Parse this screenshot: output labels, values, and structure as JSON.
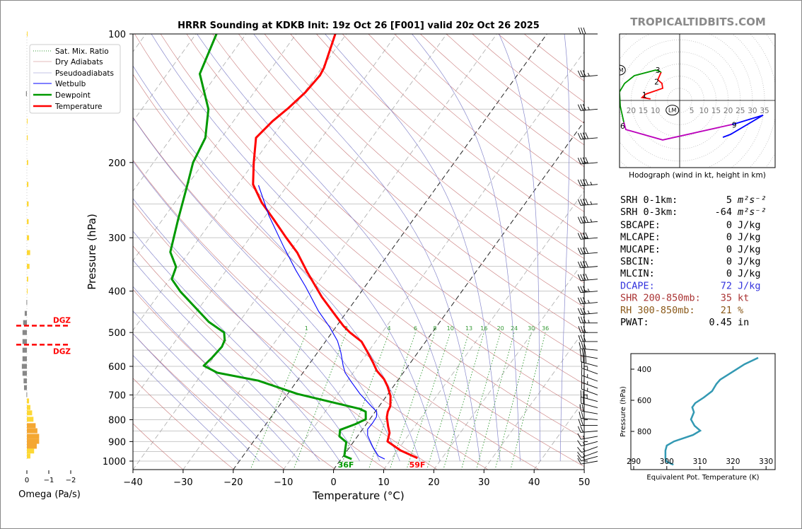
{
  "title": "HRRR Sounding at KDKB Init: 19z Oct 26 [F001] valid 20z Oct 26 2025",
  "watermark": "TROPICALTIDBITS.COM",
  "colors": {
    "temperature": "#ff0000",
    "dewpoint": "#009900",
    "wetbulb": "#0000ff",
    "dry": "#c87878",
    "moist": "#8888cc",
    "mix": "#339933",
    "thetae": "#3399b3",
    "dgz": "#ff0000",
    "omega_up": "#f4a732",
    "omega_weak": "#fdd835",
    "omega_down": "#888888"
  },
  "legend": [
    "Sat. Mix. Ratio",
    "Dry Adiabats",
    "Pseudoadiabats",
    "Wetbulb",
    "Dewpoint",
    "Temperature"
  ],
  "chart_data": {
    "type": "line",
    "title": "HRRR Sounding at KDKB Init: 19z Oct 26 [F001] valid 20z Oct 26 2025",
    "xlabel": "Temperature (°C)",
    "ylabel": "Pressure (hPa)",
    "xlim": [
      -40,
      50
    ],
    "ylim": [
      1050,
      100
    ],
    "xticks": [
      "−40",
      "−30",
      "−20",
      "−10",
      "0",
      "10",
      "20",
      "30",
      "40",
      "50"
    ],
    "yticks": [
      "100",
      "200",
      "300",
      "400",
      "500",
      "600",
      "700",
      "800",
      "900",
      "1000"
    ],
    "mixing_ratio_labels": [
      "1",
      "2",
      "4",
      "6",
      "8",
      "10",
      "13",
      "16",
      "20",
      "24",
      "30",
      "36"
    ],
    "surface_labels": {
      "dewpoint": "36F",
      "temperature": "59F"
    },
    "series": [
      {
        "name": "Temperature",
        "points": [
          [
            984,
            15.1
          ],
          [
            944,
            10.6
          ],
          [
            899,
            6.7
          ],
          [
            859,
            5.9
          ],
          [
            830,
            4.7
          ],
          [
            789,
            3.1
          ],
          [
            766,
            2.5
          ],
          [
            743,
            2.2
          ],
          [
            704,
            0.8
          ],
          [
            668,
            -1.2
          ],
          [
            643,
            -2.9
          ],
          [
            614,
            -5.6
          ],
          [
            589,
            -7.4
          ],
          [
            552,
            -10.4
          ],
          [
            525,
            -12.8
          ],
          [
            500,
            -16.4
          ],
          [
            483,
            -18.6
          ],
          [
            453,
            -22.1
          ],
          [
            413,
            -27.1
          ],
          [
            361,
            -33.6
          ],
          [
            325,
            -38.4
          ],
          [
            299,
            -42.9
          ],
          [
            272,
            -47.8
          ],
          [
            248,
            -52.7
          ],
          [
            225,
            -57
          ],
          [
            200,
            -60
          ],
          [
            175,
            -63.1
          ],
          [
            160,
            -62.2
          ],
          [
            149,
            -60.9
          ],
          [
            137,
            -59.8
          ],
          [
            125,
            -59.3
          ],
          [
            120,
            -59.6
          ],
          [
            100,
            -62.2
          ]
        ]
      },
      {
        "name": "Dewpoint",
        "points": [
          [
            989,
            2.1
          ],
          [
            973,
            0.2
          ],
          [
            903,
            -1.4
          ],
          [
            875,
            -3.6
          ],
          [
            845,
            -4.4
          ],
          [
            820,
            -2.2
          ],
          [
            798,
            -0.8
          ],
          [
            766,
            -1.9
          ],
          [
            754,
            -3.6
          ],
          [
            696,
            -18.1
          ],
          [
            648,
            -27.8
          ],
          [
            621,
            -37.1
          ],
          [
            598,
            -40.8
          ],
          [
            573,
            -40.3
          ],
          [
            540,
            -39.9
          ],
          [
            521,
            -40.3
          ],
          [
            500,
            -41.5
          ],
          [
            472,
            -46.1
          ],
          [
            401,
            -56.1
          ],
          [
            375,
            -59.6
          ],
          [
            351,
            -60.5
          ],
          [
            324,
            -63.8
          ],
          [
            272,
            -66.9
          ],
          [
            226,
            -70
          ],
          [
            200,
            -72.1
          ],
          [
            175,
            -73.2
          ],
          [
            150,
            -76.7
          ],
          [
            124,
            -83.5
          ],
          [
            100,
            -85.9
          ]
        ]
      },
      {
        "name": "Wetbulb",
        "points": [
          [
            989,
            8.7
          ],
          [
            973,
            7.0
          ],
          [
            927,
            4.6
          ],
          [
            871,
            1.9
          ],
          [
            842,
            1.0
          ],
          [
            814,
            1.1
          ],
          [
            788,
            1.0
          ],
          [
            766,
            0.3
          ],
          [
            746,
            -1.4
          ],
          [
            696,
            -5.6
          ],
          [
            653,
            -9
          ],
          [
            621,
            -11.6
          ],
          [
            598,
            -13
          ],
          [
            556,
            -15.4
          ],
          [
            523,
            -17.7
          ],
          [
            485,
            -21.3
          ],
          [
            446,
            -25.7
          ],
          [
            390,
            -31.9
          ],
          [
            357,
            -36.2
          ],
          [
            316,
            -41.8
          ],
          [
            266,
            -49.4
          ],
          [
            226,
            -55.8
          ]
        ]
      }
    ],
    "wind_barbs": [
      [
        1000,
        260,
        10
      ],
      [
        975,
        255,
        15
      ],
      [
        950,
        250,
        15
      ],
      [
        925,
        250,
        15
      ],
      [
        900,
        255,
        15
      ],
      [
        875,
        260,
        15
      ],
      [
        850,
        265,
        20
      ],
      [
        825,
        270,
        20
      ],
      [
        800,
        275,
        20
      ],
      [
        775,
        280,
        20
      ],
      [
        750,
        285,
        20
      ],
      [
        725,
        285,
        25
      ],
      [
        700,
        290,
        25
      ],
      [
        675,
        290,
        25
      ],
      [
        650,
        290,
        25
      ],
      [
        625,
        290,
        25
      ],
      [
        600,
        285,
        30
      ],
      [
        575,
        280,
        30
      ],
      [
        550,
        275,
        30
      ],
      [
        525,
        270,
        30
      ],
      [
        500,
        270,
        30
      ],
      [
        475,
        270,
        35
      ],
      [
        450,
        265,
        35
      ],
      [
        425,
        265,
        35
      ],
      [
        400,
        265,
        35
      ],
      [
        375,
        265,
        40
      ],
      [
        350,
        265,
        40
      ],
      [
        325,
        265,
        40
      ],
      [
        300,
        265,
        40
      ],
      [
        275,
        265,
        45
      ],
      [
        250,
        265,
        45
      ],
      [
        225,
        265,
        45
      ],
      [
        200,
        265,
        40
      ],
      [
        175,
        265,
        40
      ],
      [
        150,
        265,
        35
      ],
      [
        125,
        265,
        35
      ],
      [
        100,
        270,
        30
      ]
    ],
    "dgz": {
      "label": "DGZ",
      "top_hpa": 482,
      "bottom_hpa": 534
    },
    "omega": {
      "xlabel": "Omega (Pa/s)",
      "xticks": [
        "0",
        "−1",
        "−2"
      ],
      "bars": [
        [
          100,
          -0.02
        ],
        [
          138,
          0.04
        ],
        [
          160,
          -0.03
        ],
        [
          175,
          -0.04
        ],
        [
          200,
          -0.06
        ],
        [
          225,
          -0.07
        ],
        [
          250,
          -0.08
        ],
        [
          275,
          -0.08
        ],
        [
          300,
          -0.1
        ],
        [
          325,
          -0.15
        ],
        [
          350,
          -0.12
        ],
        [
          375,
          -0.06
        ],
        [
          400,
          -0.03
        ],
        [
          425,
          0.02
        ],
        [
          451,
          0.1
        ],
        [
          474,
          0.17
        ],
        [
          500,
          0.2
        ],
        [
          525,
          0.2
        ],
        [
          550,
          0.2
        ],
        [
          576,
          0.2
        ],
        [
          600,
          0.23
        ],
        [
          623,
          0.2
        ],
        [
          649,
          0.15
        ],
        [
          673,
          0.13
        ],
        [
          699,
          0.02
        ],
        [
          723,
          -0.1
        ],
        [
          749,
          -0.16
        ],
        [
          771,
          -0.24
        ],
        [
          798,
          -0.3
        ],
        [
          826,
          -0.4
        ],
        [
          849,
          -0.48
        ],
        [
          875,
          -0.56
        ],
        [
          899,
          -0.56
        ],
        [
          923,
          -0.45
        ],
        [
          947,
          -0.33
        ],
        [
          973,
          -0.16
        ]
      ]
    },
    "hodograph": {
      "caption": "Hodograph (wind in kt, height in km)",
      "left_ticks": [
        "20",
        "15",
        "10"
      ],
      "right_ticks": [
        "5",
        "10",
        "15",
        "20",
        "25",
        "30",
        "35"
      ],
      "segments": [
        {
          "color": "#ff0000",
          "uv": [
            [
              -12,
              0.6
            ],
            [
              -15.5,
              1.2
            ],
            [
              -14,
              2.6
            ],
            [
              -7,
              5
            ],
            [
              -7.3,
              7
            ],
            [
              -9,
              8.5
            ],
            [
              -7.6,
              11.7
            ]
          ]
        },
        {
          "color": "#009900",
          "uv": [
            [
              -7.6,
              11.7
            ],
            [
              -9.9,
              12.5
            ],
            [
              -18.7,
              10.2
            ],
            [
              -22.7,
              7
            ],
            [
              -24.8,
              3.5
            ],
            [
              -24.5,
              -2.3
            ],
            [
              -23,
              -9
            ]
          ]
        },
        {
          "color": "#bb00bb",
          "uv": [
            [
              -23,
              -9
            ],
            [
              -22.2,
              -12
            ],
            [
              -7,
              -16.3
            ],
            [
              21.6,
              -9.9
            ]
          ]
        },
        {
          "color": "#0000ff",
          "uv": [
            [
              21.6,
              -9.9
            ],
            [
              23.9,
              -9.3
            ],
            [
              34.4,
              -6.1
            ],
            [
              21,
              -14
            ],
            [
              17.8,
              -15.2
            ]
          ]
        }
      ],
      "height_labels": [
        [
          "1",
          -14.5,
          2.3
        ],
        [
          "2",
          -9.5,
          7.7
        ],
        [
          "3",
          -9,
          12.6
        ],
        [
          "6",
          -23.5,
          -10.5
        ],
        [
          "9",
          22.5,
          -10
        ]
      ],
      "rm": {
        "label": "RM",
        "u": -25,
        "v": 12.5
      },
      "lm": {
        "label": "LM",
        "u": -3,
        "v": -4
      }
    },
    "theta_e": {
      "xlabel": "Equivalent Pot. Temperature (K)",
      "ylabel": "Pressure (hPa)",
      "xticks": [
        "290",
        "300",
        "310",
        "320",
        "330"
      ],
      "yticks": [
        "400",
        "600",
        "800"
      ],
      "points": [
        [
          327,
          327.6
        ],
        [
          368,
          323.5
        ],
        [
          414,
          320.1
        ],
        [
          468,
          316.1
        ],
        [
          495,
          315
        ],
        [
          541,
          313.7
        ],
        [
          582,
          311.2
        ],
        [
          618,
          308.6
        ],
        [
          645,
          307.7
        ],
        [
          677,
          308.2
        ],
        [
          723,
          307.3
        ],
        [
          764,
          308.4
        ],
        [
          795,
          310.1
        ],
        [
          823,
          307.9
        ],
        [
          864,
          302.2
        ],
        [
          891,
          300
        ],
        [
          923,
          299.6
        ],
        [
          973,
          299.6
        ],
        [
          995,
          300
        ],
        [
          1014,
          302
        ]
      ]
    }
  },
  "stats": [
    {
      "label": "SRH 0-1km:",
      "value": "5",
      "unit": "m²s⁻²",
      "color": "#000000"
    },
    {
      "label": "SRH 0-3km:",
      "value": "-64",
      "unit": "m²s⁻²",
      "color": "#000000"
    },
    {
      "label": "SBCAPE:",
      "value": "0",
      "unit": "J/kg",
      "color": "#000000"
    },
    {
      "label": "MLCAPE:",
      "value": "0",
      "unit": "J/kg",
      "color": "#000000"
    },
    {
      "label": "MUCAPE:",
      "value": "0",
      "unit": "J/kg",
      "color": "#000000"
    },
    {
      "label": "SBCIN:",
      "value": "0",
      "unit": "J/kg",
      "color": "#000000"
    },
    {
      "label": "MLCIN:",
      "value": "0",
      "unit": "J/kg",
      "color": "#000000"
    },
    {
      "label": "DCAPE:",
      "value": "72",
      "unit": "J/kg",
      "color": "#3333dd"
    },
    {
      "label": "SHR 200-850mb:",
      "value": "35",
      "unit": "kt",
      "color": "#aa3333"
    },
    {
      "label": "RH 300-850mb:",
      "value": "21",
      "unit": "%",
      "color": "#8b5a1a"
    },
    {
      "label": "PWAT:",
      "value": "0.45",
      "unit": "in",
      "color": "#000000"
    }
  ]
}
